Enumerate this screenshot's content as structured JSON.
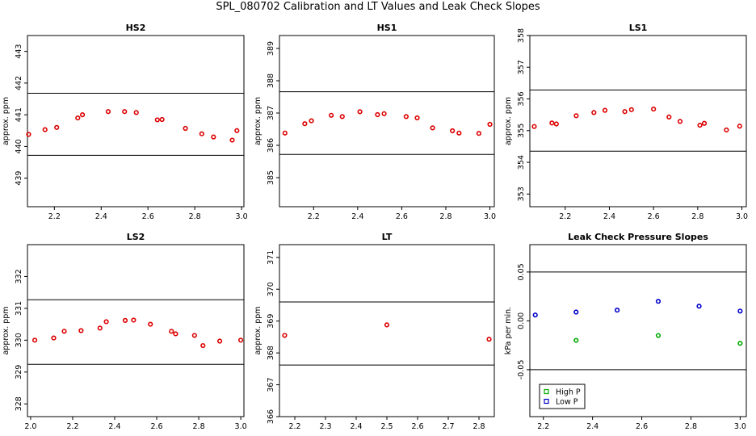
{
  "main_title": "SPL_080702  Calibration and LT Values and Leak Check Slopes",
  "chart_data": [
    {
      "type": "scatter",
      "title": "HS2",
      "ylabel": "approx. ppm",
      "xlim": [
        2.085,
        3.01
      ],
      "ylim": [
        438.1,
        443.5
      ],
      "xticks": [
        2.2,
        2.4,
        2.6,
        2.8,
        3.0
      ],
      "xtick_labels": [
        "2.2",
        "2.4",
        "2.6",
        "2.8",
        "3.0"
      ],
      "yticks": [
        439,
        440,
        441,
        442,
        443
      ],
      "ytick_labels": [
        "439",
        "440",
        "441",
        "442",
        "443"
      ],
      "hlines": [
        441.68,
        439.72
      ],
      "series": [
        {
          "color": "#dd0000",
          "x": [
            2.09,
            2.16,
            2.21,
            2.3,
            2.32,
            2.43,
            2.5,
            2.55,
            2.64,
            2.66,
            2.76,
            2.83,
            2.88,
            2.96,
            2.98
          ],
          "y": [
            440.38,
            440.53,
            440.6,
            440.9,
            441.0,
            441.1,
            441.1,
            441.07,
            440.84,
            440.85,
            440.57,
            440.4,
            440.3,
            440.2,
            440.5
          ]
        }
      ]
    },
    {
      "type": "scatter",
      "title": "HS1",
      "ylabel": "approx. ppm",
      "xlim": [
        2.045,
        3.02
      ],
      "ylim": [
        384.1,
        389.4
      ],
      "xticks": [
        2.2,
        2.4,
        2.6,
        2.8,
        3.0
      ],
      "xtick_labels": [
        "2.2",
        "2.4",
        "2.6",
        "2.8",
        "3.0"
      ],
      "yticks": [
        385,
        386,
        387,
        388,
        389
      ],
      "ytick_labels": [
        "385",
        "386",
        "387",
        "388",
        "389"
      ],
      "hlines": [
        387.66,
        385.72
      ],
      "series": [
        {
          "color": "#dd0000",
          "x": [
            2.07,
            2.16,
            2.19,
            2.28,
            2.33,
            2.41,
            2.49,
            2.52,
            2.62,
            2.67,
            2.74,
            2.83,
            2.86,
            2.95,
            3.0
          ],
          "y": [
            386.38,
            386.67,
            386.76,
            386.93,
            386.89,
            387.04,
            386.95,
            386.98,
            386.89,
            386.85,
            386.54,
            386.45,
            386.38,
            386.37,
            386.65
          ]
        }
      ]
    },
    {
      "type": "scatter",
      "title": "LS1",
      "ylabel": "approx. ppm",
      "xlim": [
        2.04,
        3.02
      ],
      "ylim": [
        352.6,
        358.0
      ],
      "xticks": [
        2.2,
        2.4,
        2.6,
        2.8,
        3.0
      ],
      "xtick_labels": [
        "2.2",
        "2.4",
        "2.6",
        "2.8",
        "3.0"
      ],
      "yticks": [
        353,
        354,
        355,
        356,
        357,
        358
      ],
      "ytick_labels": [
        "353",
        "354",
        "355",
        "356",
        "357",
        "358"
      ],
      "hlines": [
        356.28,
        354.35
      ],
      "series": [
        {
          "color": "#dd0000",
          "x": [
            2.06,
            2.14,
            2.16,
            2.25,
            2.33,
            2.38,
            2.47,
            2.5,
            2.6,
            2.67,
            2.72,
            2.81,
            2.83,
            2.93,
            2.99
          ],
          "y": [
            355.13,
            355.24,
            355.21,
            355.47,
            355.57,
            355.64,
            355.6,
            355.66,
            355.68,
            355.43,
            355.29,
            355.17,
            355.23,
            355.02,
            355.14
          ]
        }
      ]
    },
    {
      "type": "scatter",
      "title": "LS2",
      "ylabel": "approx. ppm",
      "xlim": [
        1.985,
        3.015
      ],
      "ylim": [
        327.6,
        333.0
      ],
      "xticks": [
        2.0,
        2.2,
        2.4,
        2.6,
        2.8,
        3.0
      ],
      "xtick_labels": [
        "2.0",
        "2.2",
        "2.4",
        "2.6",
        "2.8",
        "3.0"
      ],
      "yticks": [
        328,
        329,
        330,
        331,
        332
      ],
      "ytick_labels": [
        "328",
        "329",
        "330",
        "331",
        "332"
      ],
      "hlines": [
        331.27,
        329.24
      ],
      "series": [
        {
          "color": "#dd0000",
          "x": [
            2.02,
            2.11,
            2.16,
            2.24,
            2.33,
            2.36,
            2.45,
            2.49,
            2.57,
            2.67,
            2.69,
            2.78,
            2.82,
            2.9,
            3.0
          ],
          "y": [
            330.0,
            330.07,
            330.28,
            330.3,
            330.38,
            330.58,
            330.62,
            330.63,
            330.5,
            330.28,
            330.2,
            330.15,
            329.83,
            329.97,
            330.0
          ]
        }
      ]
    },
    {
      "type": "scatter",
      "title": "LT",
      "ylabel": "approx. ppm",
      "xlim": [
        2.15,
        2.85
      ],
      "ylim": [
        366.0,
        371.4
      ],
      "xticks": [
        2.2,
        2.3,
        2.4,
        2.5,
        2.6,
        2.7,
        2.8
      ],
      "xtick_labels": [
        "2.2",
        "2.3",
        "2.4",
        "2.5",
        "2.6",
        "2.7",
        "2.8"
      ],
      "yticks": [
        366,
        367,
        368,
        369,
        370,
        371
      ],
      "ytick_labels": [
        "366",
        "367",
        "368",
        "369",
        "370",
        "371"
      ],
      "hlines": [
        369.6,
        367.62
      ],
      "series": [
        {
          "color": "#dd0000",
          "x": [
            2.167,
            2.5,
            2.833
          ],
          "y": [
            368.55,
            368.88,
            368.43
          ]
        }
      ]
    },
    {
      "type": "scatter",
      "title": "Leak Check Pressure Slopes",
      "ylabel": "kPa per min.",
      "xlim": [
        2.145,
        3.025
      ],
      "ylim": [
        -0.098,
        0.078
      ],
      "xticks": [
        2.2,
        2.4,
        2.6,
        2.8,
        3.0
      ],
      "xtick_labels": [
        "2.2",
        "2.4",
        "2.6",
        "2.8",
        "3.0"
      ],
      "yticks": [
        -0.05,
        0.0,
        0.05
      ],
      "ytick_labels": [
        "-0.05",
        "0.00",
        "0.05"
      ],
      "hlines": [
        0.05,
        -0.05
      ],
      "legend": {
        "position": "bottom-left",
        "entries": [
          "High P",
          "Low P"
        ]
      },
      "series": [
        {
          "name": "High P",
          "color": "#00aa00",
          "x": [
            2.333,
            2.667,
            3.0
          ],
          "y": [
            -0.02,
            -0.015,
            -0.023
          ]
        },
        {
          "name": "Low P",
          "color": "#0000cc",
          "x": [
            2.167,
            2.333,
            2.5,
            2.667,
            2.833,
            3.0
          ],
          "y": [
            0.006,
            0.009,
            0.011,
            0.02,
            0.015,
            0.01
          ]
        }
      ]
    }
  ]
}
